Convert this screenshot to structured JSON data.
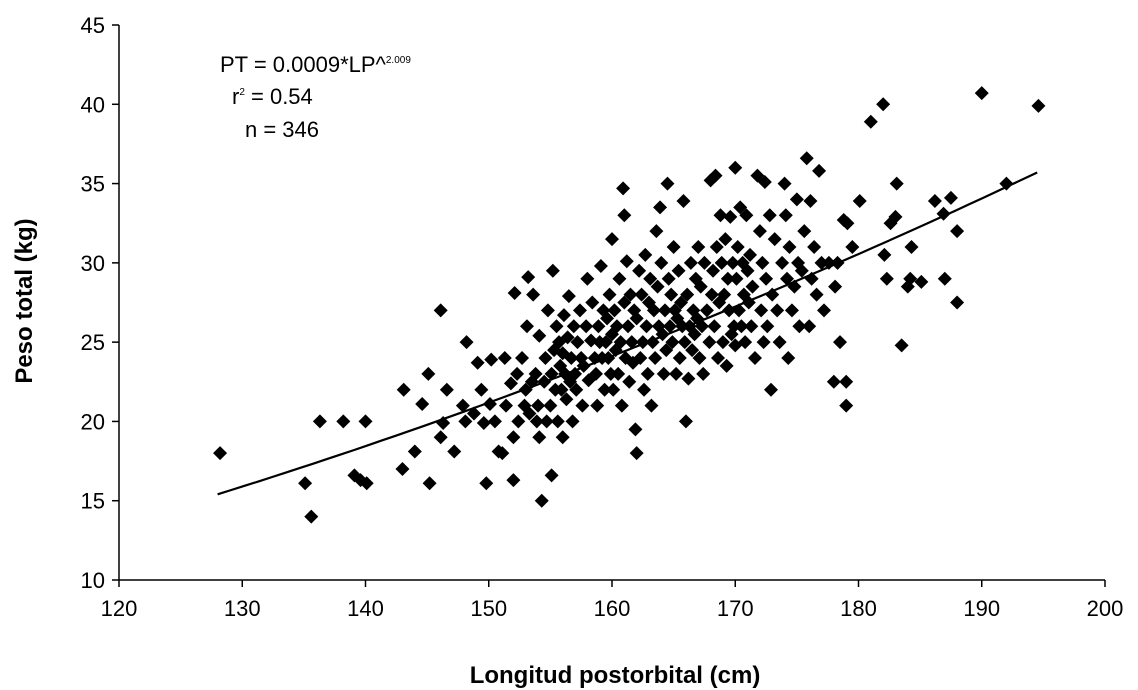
{
  "chart_data": {
    "type": "scatter",
    "title": "",
    "xlabel": "Longitud postorbital (cm)",
    "ylabel": "Peso total (kg)",
    "xlim": [
      120,
      200
    ],
    "ylim": [
      10,
      45
    ],
    "xticks": [
      120,
      130,
      140,
      150,
      160,
      170,
      180,
      190,
      200
    ],
    "yticks": [
      10,
      15,
      20,
      25,
      30,
      35,
      40,
      45
    ],
    "grid": false,
    "legend": "none",
    "marker": "diamond",
    "marker_color": "#000000",
    "annotation": {
      "equation_base": "PT = 0.0009*LP^",
      "equation_exponent": "2.009",
      "r2_base": "r",
      "r2_sup": "2",
      "r2_rest": " = 0.54",
      "n": "n = 346"
    },
    "trendline": {
      "type": "power",
      "a": 0.0009,
      "b": 2.009,
      "x_range": [
        128,
        194.5
      ]
    },
    "points": [
      [
        128.2,
        18.0
      ],
      [
        135.1,
        16.1
      ],
      [
        135.6,
        14.0
      ],
      [
        136.3,
        20.0
      ],
      [
        138.2,
        20.0
      ],
      [
        139.1,
        16.6
      ],
      [
        139.6,
        16.3
      ],
      [
        140.1,
        16.1
      ],
      [
        140.0,
        20.0
      ],
      [
        143.0,
        17.0
      ],
      [
        143.1,
        22.0
      ],
      [
        144.0,
        18.1
      ],
      [
        144.6,
        21.1
      ],
      [
        145.1,
        23.0
      ],
      [
        145.2,
        16.1
      ],
      [
        146.1,
        19.0
      ],
      [
        146.1,
        27.0
      ],
      [
        146.3,
        19.9
      ],
      [
        146.6,
        22.0
      ],
      [
        147.2,
        18.1
      ],
      [
        147.9,
        21.0
      ],
      [
        148.1,
        20.0
      ],
      [
        148.2,
        25.0
      ],
      [
        148.8,
        20.5
      ],
      [
        149.1,
        23.7
      ],
      [
        149.4,
        22.0
      ],
      [
        149.6,
        19.9
      ],
      [
        149.8,
        16.1
      ],
      [
        150.1,
        21.1
      ],
      [
        150.2,
        23.9
      ],
      [
        150.5,
        20.0
      ],
      [
        150.8,
        18.1
      ],
      [
        151.1,
        18.0
      ],
      [
        151.3,
        24.0
      ],
      [
        151.4,
        21.0
      ],
      [
        151.8,
        22.4
      ],
      [
        152.0,
        16.3
      ],
      [
        152.0,
        19.0
      ],
      [
        152.1,
        28.1
      ],
      [
        152.3,
        23.0
      ],
      [
        152.4,
        20.0
      ],
      [
        152.7,
        24.0
      ],
      [
        152.9,
        21.0
      ],
      [
        153.0,
        22.0
      ],
      [
        153.1,
        26.0
      ],
      [
        153.2,
        29.1
      ],
      [
        153.3,
        20.5
      ],
      [
        153.5,
        22.5
      ],
      [
        153.6,
        28.0
      ],
      [
        153.8,
        23.0
      ],
      [
        153.9,
        20.0
      ],
      [
        154.0,
        21.0
      ],
      [
        154.1,
        25.4
      ],
      [
        154.1,
        19.0
      ],
      [
        154.3,
        15.0
      ],
      [
        154.5,
        22.5
      ],
      [
        154.6,
        24.0
      ],
      [
        154.7,
        20.0
      ],
      [
        154.8,
        27.0
      ],
      [
        155.0,
        21.0
      ],
      [
        155.1,
        23.0
      ],
      [
        155.1,
        16.6
      ],
      [
        155.2,
        29.5
      ],
      [
        155.3,
        24.5
      ],
      [
        155.4,
        22.0
      ],
      [
        155.5,
        26.0
      ],
      [
        155.6,
        20.0
      ],
      [
        155.7,
        25.0
      ],
      [
        155.8,
        23.5
      ],
      [
        155.9,
        22.0
      ],
      [
        156.0,
        24.3
      ],
      [
        156.0,
        19.0
      ],
      [
        156.1,
        26.7
      ],
      [
        156.2,
        23.0
      ],
      [
        156.3,
        21.4
      ],
      [
        156.4,
        25.3
      ],
      [
        156.5,
        27.9
      ],
      [
        156.6,
        22.5
      ],
      [
        156.7,
        24.0
      ],
      [
        156.8,
        20.0
      ],
      [
        156.9,
        26.0
      ],
      [
        157.0,
        23.0
      ],
      [
        157.1,
        22.0
      ],
      [
        157.2,
        25.0
      ],
      [
        157.4,
        27.0
      ],
      [
        157.5,
        24.0
      ],
      [
        157.6,
        21.0
      ],
      [
        157.7,
        23.5
      ],
      [
        157.9,
        26.0
      ],
      [
        158.0,
        29.0
      ],
      [
        158.1,
        22.6
      ],
      [
        158.3,
        25.1
      ],
      [
        158.4,
        27.5
      ],
      [
        158.6,
        24.0
      ],
      [
        158.7,
        23.0
      ],
      [
        158.8,
        21.0
      ],
      [
        158.9,
        26.0
      ],
      [
        159.0,
        25.0
      ],
      [
        159.1,
        29.8
      ],
      [
        159.2,
        24.0
      ],
      [
        159.3,
        27.0
      ],
      [
        159.4,
        22.0
      ],
      [
        159.5,
        25.0
      ],
      [
        159.6,
        26.5
      ],
      [
        159.7,
        24.0
      ],
      [
        159.8,
        28.0
      ],
      [
        159.9,
        23.0
      ],
      [
        160.0,
        31.5
      ],
      [
        160.0,
        25.5
      ],
      [
        160.1,
        22.0
      ],
      [
        160.2,
        27.0
      ],
      [
        160.3,
        24.5
      ],
      [
        160.4,
        26.0
      ],
      [
        160.5,
        23.0
      ],
      [
        160.6,
        29.0
      ],
      [
        160.7,
        25.0
      ],
      [
        160.8,
        21.0
      ],
      [
        160.9,
        34.7
      ],
      [
        161.0,
        33.0
      ],
      [
        161.0,
        27.5
      ],
      [
        161.1,
        24.0
      ],
      [
        161.2,
        30.1
      ],
      [
        161.3,
        26.0
      ],
      [
        161.4,
        22.5
      ],
      [
        161.5,
        28.0
      ],
      [
        161.6,
        25.0
      ],
      [
        161.7,
        23.7
      ],
      [
        161.8,
        27.0
      ],
      [
        161.9,
        19.5
      ],
      [
        162.0,
        18.0
      ],
      [
        162.0,
        26.5
      ],
      [
        162.2,
        29.5
      ],
      [
        162.3,
        24.0
      ],
      [
        162.4,
        28.0
      ],
      [
        162.5,
        25.0
      ],
      [
        162.6,
        22.0
      ],
      [
        162.7,
        30.5
      ],
      [
        162.8,
        26.0
      ],
      [
        162.9,
        23.0
      ],
      [
        163.0,
        27.5
      ],
      [
        163.1,
        29.0
      ],
      [
        163.2,
        21.0
      ],
      [
        163.3,
        25.0
      ],
      [
        163.4,
        27.0
      ],
      [
        163.5,
        24.0
      ],
      [
        163.6,
        32.0
      ],
      [
        163.7,
        28.5
      ],
      [
        163.8,
        26.0
      ],
      [
        163.9,
        33.5
      ],
      [
        164.0,
        30.0
      ],
      [
        164.1,
        25.5
      ],
      [
        164.2,
        23.0
      ],
      [
        164.3,
        27.0
      ],
      [
        164.4,
        24.5
      ],
      [
        164.5,
        35.0
      ],
      [
        164.6,
        29.0
      ],
      [
        164.7,
        26.0
      ],
      [
        164.8,
        28.0
      ],
      [
        164.9,
        25.0
      ],
      [
        165.0,
        31.0
      ],
      [
        165.1,
        27.0
      ],
      [
        165.2,
        23.0
      ],
      [
        165.3,
        26.5
      ],
      [
        165.4,
        29.5
      ],
      [
        165.5,
        24.0
      ],
      [
        165.6,
        27.5
      ],
      [
        165.7,
        26.0
      ],
      [
        165.8,
        33.9
      ],
      [
        165.9,
        25.0
      ],
      [
        166.0,
        20.0
      ],
      [
        166.1,
        28.0
      ],
      [
        166.2,
        22.7
      ],
      [
        166.3,
        26.0
      ],
      [
        166.4,
        30.0
      ],
      [
        166.5,
        24.5
      ],
      [
        166.6,
        27.0
      ],
      [
        166.7,
        25.5
      ],
      [
        166.8,
        29.0
      ],
      [
        166.9,
        26.5
      ],
      [
        167.0,
        31.0
      ],
      [
        167.1,
        24.0
      ],
      [
        167.2,
        28.5
      ],
      [
        167.3,
        26.0
      ],
      [
        167.4,
        23.0
      ],
      [
        167.5,
        30.0
      ],
      [
        167.7,
        27.0
      ],
      [
        167.9,
        25.0
      ],
      [
        168.0,
        35.2
      ],
      [
        168.1,
        28.0
      ],
      [
        168.2,
        29.5
      ],
      [
        168.3,
        26.0
      ],
      [
        168.4,
        35.5
      ],
      [
        168.5,
        31.0
      ],
      [
        168.6,
        24.0
      ],
      [
        168.7,
        27.5
      ],
      [
        168.8,
        33.0
      ],
      [
        168.9,
        30.0
      ],
      [
        169.0,
        25.0
      ],
      [
        169.1,
        28.0
      ],
      [
        169.2,
        31.5
      ],
      [
        169.3,
        23.5
      ],
      [
        169.4,
        29.0
      ],
      [
        169.5,
        27.0
      ],
      [
        169.6,
        32.9
      ],
      [
        169.7,
        25.5
      ],
      [
        169.8,
        30.0
      ],
      [
        169.9,
        26.0
      ],
      [
        170.0,
        36.0
      ],
      [
        170.0,
        24.8
      ],
      [
        170.1,
        29.0
      ],
      [
        170.2,
        31.0
      ],
      [
        170.3,
        27.0
      ],
      [
        170.4,
        33.5
      ],
      [
        170.5,
        26.0
      ],
      [
        170.6,
        30.0
      ],
      [
        170.7,
        28.0
      ],
      [
        170.8,
        25.0
      ],
      [
        170.9,
        33.0
      ],
      [
        171.0,
        29.5
      ],
      [
        171.1,
        27.5
      ],
      [
        171.2,
        30.5
      ],
      [
        171.3,
        26.0
      ],
      [
        171.4,
        28.5
      ],
      [
        171.6,
        24.0
      ],
      [
        171.8,
        35.5
      ],
      [
        172.0,
        32.0
      ],
      [
        172.1,
        27.0
      ],
      [
        172.2,
        30.0
      ],
      [
        172.3,
        25.0
      ],
      [
        172.4,
        35.1
      ],
      [
        172.5,
        29.0
      ],
      [
        172.6,
        26.0
      ],
      [
        172.8,
        33.0
      ],
      [
        172.9,
        22.0
      ],
      [
        173.0,
        28.0
      ],
      [
        173.2,
        31.5
      ],
      [
        173.4,
        27.0
      ],
      [
        173.6,
        25.0
      ],
      [
        173.8,
        30.0
      ],
      [
        174.0,
        35.0
      ],
      [
        174.1,
        33.0
      ],
      [
        174.2,
        29.0
      ],
      [
        174.3,
        24.0
      ],
      [
        174.4,
        31.0
      ],
      [
        174.6,
        27.0
      ],
      [
        174.8,
        28.5
      ],
      [
        175.0,
        34.0
      ],
      [
        175.1,
        30.0
      ],
      [
        175.2,
        26.0
      ],
      [
        175.4,
        29.5
      ],
      [
        175.6,
        32.0
      ],
      [
        175.8,
        36.6
      ],
      [
        176.0,
        26.0
      ],
      [
        176.1,
        33.9
      ],
      [
        176.2,
        29.0
      ],
      [
        176.4,
        31.0
      ],
      [
        176.6,
        28.0
      ],
      [
        176.8,
        35.8
      ],
      [
        177.0,
        30.0
      ],
      [
        177.2,
        27.0
      ],
      [
        177.6,
        30.0
      ],
      [
        178.0,
        22.5
      ],
      [
        178.1,
        28.5
      ],
      [
        178.3,
        30.0
      ],
      [
        178.5,
        25.0
      ],
      [
        178.8,
        32.7
      ],
      [
        179.0,
        22.5
      ],
      [
        179.0,
        21.0
      ],
      [
        179.1,
        32.5
      ],
      [
        179.5,
        31.0
      ],
      [
        180.1,
        33.9
      ],
      [
        181.0,
        38.9
      ],
      [
        182.0,
        40.0
      ],
      [
        182.1,
        30.5
      ],
      [
        182.3,
        29.0
      ],
      [
        182.6,
        32.5
      ],
      [
        183.0,
        32.9
      ],
      [
        183.1,
        35.0
      ],
      [
        183.5,
        24.8
      ],
      [
        184.0,
        28.5
      ],
      [
        184.2,
        29.0
      ],
      [
        184.3,
        31.0
      ],
      [
        185.1,
        28.8
      ],
      [
        186.2,
        33.9
      ],
      [
        186.9,
        33.1
      ],
      [
        187.0,
        29.0
      ],
      [
        187.5,
        34.1
      ],
      [
        188.0,
        32.0
      ],
      [
        188.0,
        27.5
      ],
      [
        190.0,
        40.7
      ],
      [
        192.0,
        35.0
      ],
      [
        194.6,
        39.9
      ]
    ]
  }
}
